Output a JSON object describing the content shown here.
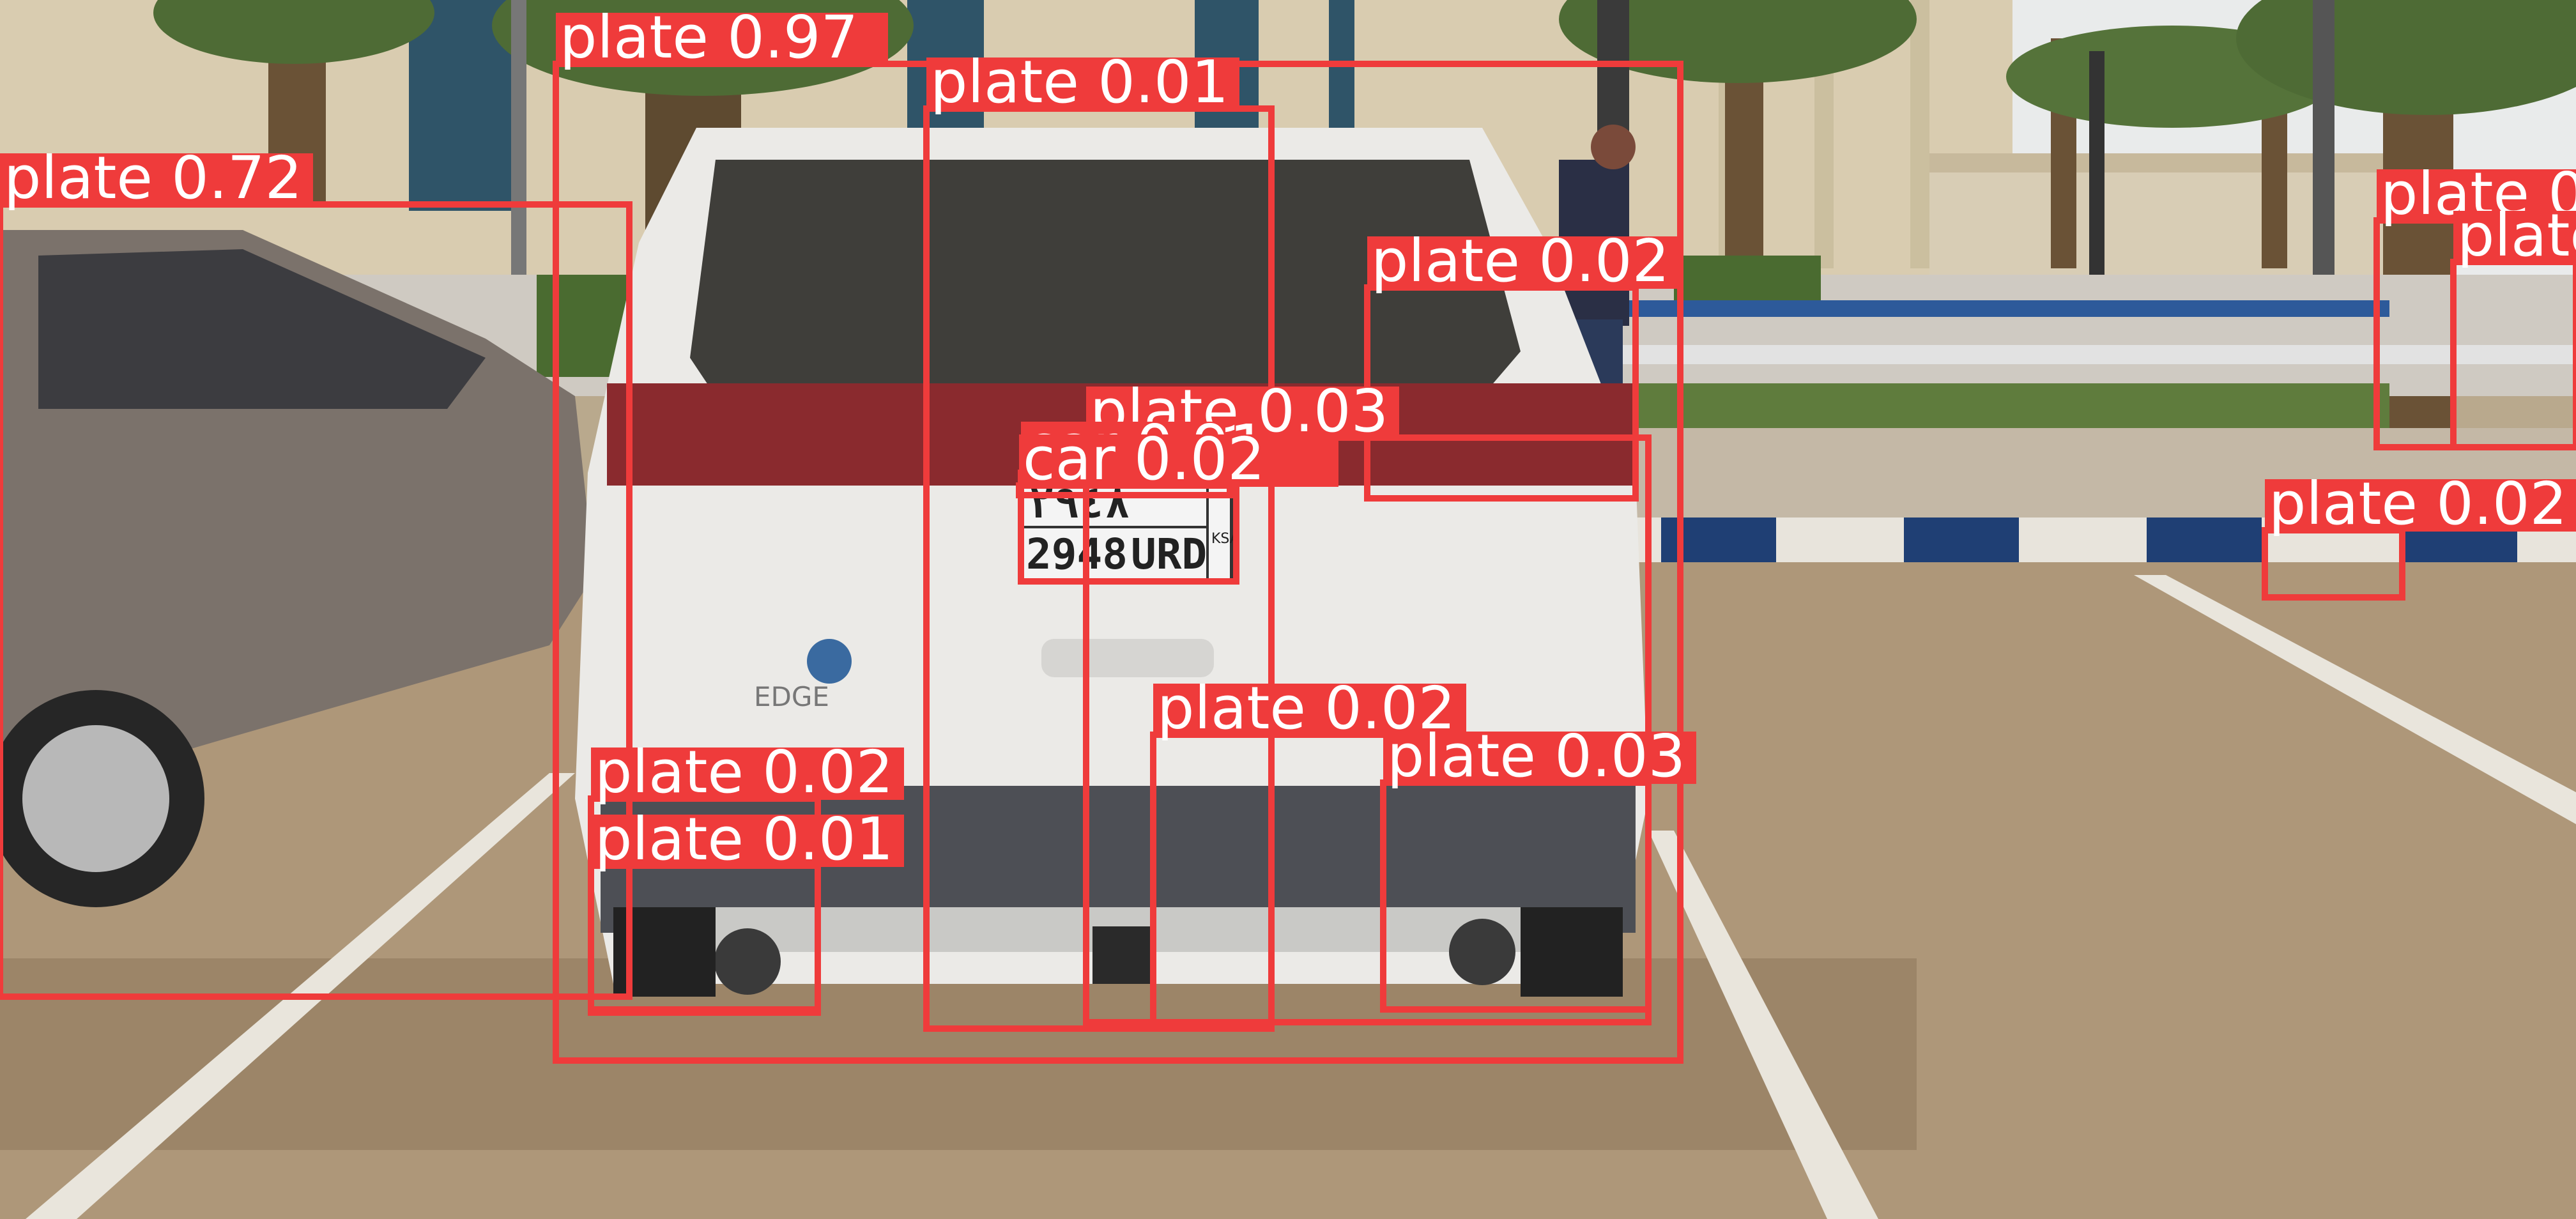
{
  "scene": {
    "colors": {
      "sky": "#e8eaea",
      "building": "#d8ccb0",
      "ground": "#b09a7c",
      "lawn": "#5a7a3a",
      "car_white": "#ececea",
      "car_grey": "#7a716a",
      "box": "#ef3b3b",
      "label_text": "#ffffff"
    },
    "plate_chars": {
      "line1": "٢٩٤٨",
      "line2_left": "2948",
      "line2_right": "URD",
      "country": "KSA"
    },
    "car_badge": "EDGE"
  },
  "detections": [
    {
      "label": "plate 0.97",
      "class": "plate",
      "score": 0.97
    },
    {
      "label": "plate 0.01",
      "class": "plate",
      "score": 0.01
    },
    {
      "label": "plate 0.72",
      "class": "plate",
      "score": 0.72
    },
    {
      "label": "plate 0.02",
      "class": "plate",
      "score": 0.02
    },
    {
      "label": "plate 0.03",
      "class": "plate",
      "score": 0.03
    },
    {
      "label": "car 0.91",
      "class": "car",
      "score": 0.91
    },
    {
      "label": "car 0.02",
      "class": "car",
      "score": 0.02
    },
    {
      "label": "plate 0.02",
      "class": "plate",
      "score": 0.02
    },
    {
      "label": "plate 0.03",
      "class": "plate",
      "score": 0.03
    },
    {
      "label": "plate 0.02",
      "class": "plate",
      "score": 0.02
    },
    {
      "label": "plate 0.01",
      "class": "plate",
      "score": 0.01
    },
    {
      "label": "plate 0",
      "class": "plate",
      "score": null
    },
    {
      "label": "plate",
      "class": "plate",
      "score": null
    },
    {
      "label": "plate 0.02",
      "class": "plate",
      "score": 0.02
    }
  ]
}
